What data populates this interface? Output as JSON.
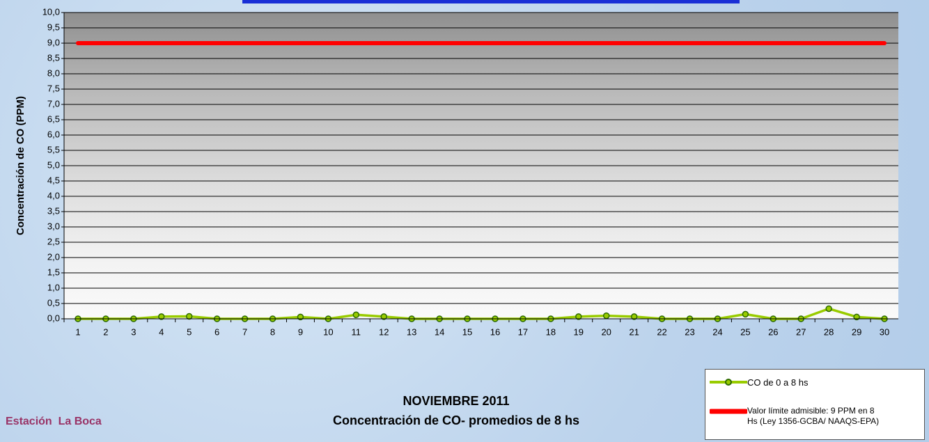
{
  "chart_data": {
    "type": "line",
    "title": "NOVIEMBRE 2011",
    "subtitle": "Concentración de CO- promedios de 8 hs",
    "station": "Estación  La Boca",
    "y_label": "Concentración de CO (PPM)",
    "categories": [
      "1",
      "2",
      "3",
      "4",
      "5",
      "6",
      "7",
      "8",
      "9",
      "10",
      "11",
      "12",
      "13",
      "14",
      "15",
      "16",
      "17",
      "18",
      "19",
      "20",
      "21",
      "22",
      "23",
      "24",
      "25",
      "26",
      "27",
      "28",
      "29",
      "30"
    ],
    "series": [
      {
        "name": "CO de 0 a 8 hs",
        "color": "#99cc00",
        "values": [
          0,
          0,
          0,
          0.07,
          0.08,
          0,
          0,
          0,
          0.06,
          0,
          0.13,
          0.07,
          0,
          0,
          0,
          0,
          0,
          0,
          0.07,
          0.1,
          0.07,
          0,
          0,
          0,
          0.15,
          0,
          0,
          0.33,
          0.06,
          0
        ]
      },
      {
        "name": "Valor límite admisible: 9 PPM en 8 Hs (Ley 1356-GCBA/ NAAQS-EPA)",
        "color": "#ff0000",
        "values": [
          9,
          9,
          9,
          9,
          9,
          9,
          9,
          9,
          9,
          9,
          9,
          9,
          9,
          9,
          9,
          9,
          9,
          9,
          9,
          9,
          9,
          9,
          9,
          9,
          9,
          9,
          9,
          9,
          9,
          9
        ]
      }
    ],
    "ylim": [
      0,
      10
    ],
    "yticks": [
      {
        "value": 0,
        "label": "0,0"
      },
      {
        "value": 0.5,
        "label": "0,5"
      },
      {
        "value": 1,
        "label": "1,0"
      },
      {
        "value": 1.5,
        "label": "1,5"
      },
      {
        "value": 2,
        "label": "2,0"
      },
      {
        "value": 2.5,
        "label": "2,5"
      },
      {
        "value": 3,
        "label": "3,0"
      },
      {
        "value": 3.5,
        "label": "3,5"
      },
      {
        "value": 4,
        "label": "4,0"
      },
      {
        "value": 4.5,
        "label": "4,5"
      },
      {
        "value": 5,
        "label": "5,0"
      },
      {
        "value": 5.5,
        "label": "5,5"
      },
      {
        "value": 6,
        "label": "6,0"
      },
      {
        "value": 6.5,
        "label": "6,5"
      },
      {
        "value": 7,
        "label": "7,0"
      },
      {
        "value": 7.5,
        "label": "7,5"
      },
      {
        "value": 8,
        "label": "8,0"
      },
      {
        "value": 8.5,
        "label": "8,5"
      },
      {
        "value": 9,
        "label": "9,0"
      },
      {
        "value": 9.5,
        "label": "9,5"
      },
      {
        "value": 10,
        "label": "10,0"
      }
    ],
    "grid": true
  }
}
